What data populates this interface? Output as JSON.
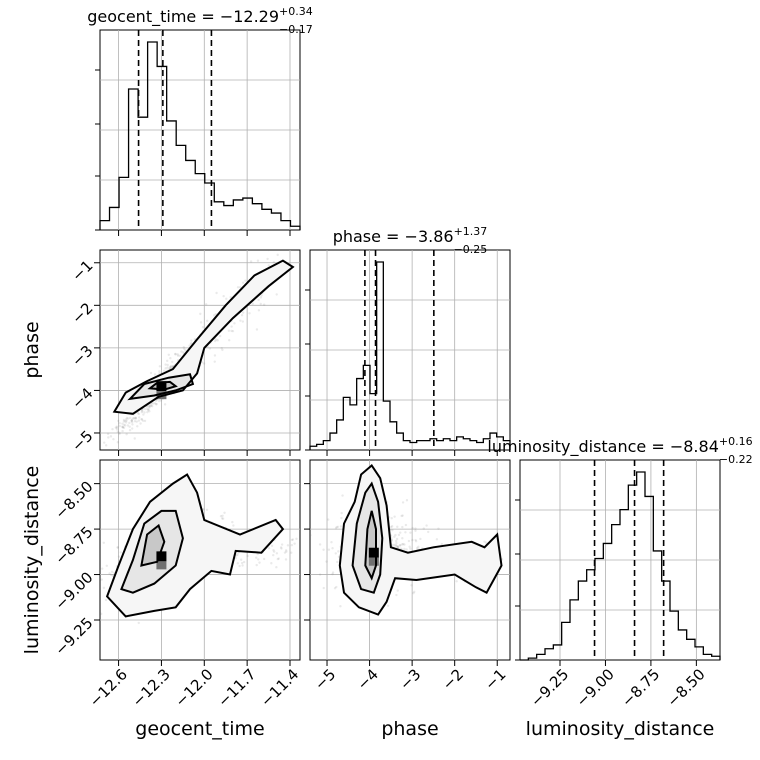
{
  "chart_data": {
    "type": "corner",
    "parameters": [
      {
        "name": "geocent_time",
        "label": "geocent_time",
        "title_main": "geocent_time = −12.29",
        "title_plus": "+0.34",
        "title_minus": "−0.17",
        "range": [
          -12.73,
          -11.33
        ],
        "ticks": [
          -12.6,
          -12.3,
          -12.0,
          -11.7,
          -11.4
        ],
        "tick_labels": [
          "−12.6",
          "−12.3",
          "−12.0",
          "−11.7",
          "−11.4"
        ],
        "quantiles": [
          -12.46,
          -12.29,
          -11.95
        ],
        "hist_values": [
          0.05,
          0.12,
          0.28,
          0.75,
          0.6,
          1.0,
          0.87,
          0.58,
          0.45,
          0.37,
          0.3,
          0.25,
          0.15,
          0.13,
          0.16,
          0.17,
          0.14,
          0.11,
          0.09,
          0.05,
          0.02
        ]
      },
      {
        "name": "phase",
        "label": "phase",
        "title_main": "phase = −3.86",
        "title_plus": "+1.37",
        "title_minus": "−0.25",
        "range": [
          -5.4,
          -0.7
        ],
        "ticks": [
          -5,
          -4,
          -3,
          -2,
          -1
        ],
        "tick_labels": [
          "−5",
          "−4",
          "−3",
          "−2",
          "−1"
        ],
        "quantiles": [
          -4.11,
          -3.86,
          -2.49
        ],
        "hist_values": [
          0.02,
          0.03,
          0.05,
          0.09,
          0.16,
          0.28,
          0.24,
          0.38,
          0.45,
          0.3,
          1.0,
          0.26,
          0.15,
          0.09,
          0.05,
          0.04,
          0.05,
          0.05,
          0.06,
          0.05,
          0.06,
          0.05,
          0.07,
          0.06,
          0.05,
          0.04,
          0.06,
          0.09,
          0.07,
          0.05
        ]
      },
      {
        "name": "luminosity_distance",
        "label": "luminosity_distance",
        "title_main": "luminosity_distance = −8.84",
        "title_plus": "+0.16",
        "title_minus": "−0.22",
        "range": [
          -9.47,
          -8.37
        ],
        "ticks": [
          -9.25,
          -9.0,
          -8.75,
          -8.5
        ],
        "tick_labels": [
          "−9.25",
          "−9.00",
          "−8.75",
          "−8.50"
        ],
        "quantiles": [
          -9.06,
          -8.84,
          -8.68
        ],
        "hist_values": [
          0.0,
          0.01,
          0.03,
          0.06,
          0.08,
          0.2,
          0.32,
          0.42,
          0.48,
          0.54,
          0.62,
          0.72,
          0.8,
          0.93,
          1.0,
          0.87,
          0.58,
          0.42,
          0.26,
          0.16,
          0.11,
          0.07,
          0.03,
          0.02
        ]
      }
    ],
    "pairs": [
      {
        "x": "geocent_time",
        "y": "phase",
        "samples": {
          "center": [
            -12.3,
            -3.9
          ],
          "spread": [
            0.3,
            1.05
          ],
          "correlation": 0.95,
          "tail_to": [
            -11.45,
            -0.95
          ]
        },
        "contours": [
          [
            [
              -12.63,
              -4.5
            ],
            [
              -12.55,
              -4.05
            ],
            [
              -12.4,
              -3.78
            ],
            [
              -12.22,
              -3.5
            ],
            [
              -12.05,
              -2.8
            ],
            [
              -11.85,
              -2.0
            ],
            [
              -11.65,
              -1.3
            ],
            [
              -11.45,
              -0.95
            ],
            [
              -11.38,
              -1.1
            ],
            [
              -11.55,
              -1.55
            ],
            [
              -11.8,
              -2.3
            ],
            [
              -12.0,
              -3.0
            ],
            [
              -12.05,
              -3.6
            ],
            [
              -12.15,
              -4.0
            ],
            [
              -12.32,
              -4.15
            ],
            [
              -12.5,
              -4.55
            ]
          ],
          [
            [
              -12.52,
              -4.2
            ],
            [
              -12.42,
              -3.85
            ],
            [
              -12.25,
              -3.7
            ],
            [
              -12.1,
              -3.62
            ],
            [
              -12.08,
              -3.85
            ],
            [
              -12.2,
              -4.0
            ],
            [
              -12.35,
              -4.12
            ]
          ],
          [
            [
              -12.38,
              -3.95
            ],
            [
              -12.33,
              -3.82
            ],
            [
              -12.24,
              -3.8
            ],
            [
              -12.2,
              -3.9
            ],
            [
              -12.28,
              -3.98
            ]
          ]
        ]
      },
      {
        "x": "geocent_time",
        "y": "luminosity_distance",
        "samples": {
          "center": [
            -12.3,
            -8.9
          ],
          "spread": [
            0.35,
            0.19
          ],
          "correlation": 0.6,
          "tail_to": [
            -11.4,
            -8.85
          ]
        },
        "contours": [
          [
            [
              -12.68,
              -9.12
            ],
            [
              -12.6,
              -8.95
            ],
            [
              -12.5,
              -8.75
            ],
            [
              -12.38,
              -8.6
            ],
            [
              -12.22,
              -8.5
            ],
            [
              -12.12,
              -8.45
            ],
            [
              -12.05,
              -8.55
            ],
            [
              -12.0,
              -8.7
            ],
            [
              -11.75,
              -8.78
            ],
            [
              -11.5,
              -8.7
            ],
            [
              -11.45,
              -8.75
            ],
            [
              -11.6,
              -8.88
            ],
            [
              -11.78,
              -8.87
            ],
            [
              -11.82,
              -9.0
            ],
            [
              -11.95,
              -8.98
            ],
            [
              -12.1,
              -9.08
            ],
            [
              -12.2,
              -9.18
            ],
            [
              -12.35,
              -9.2
            ],
            [
              -12.55,
              -9.23
            ]
          ],
          [
            [
              -12.58,
              -9.08
            ],
            [
              -12.5,
              -8.92
            ],
            [
              -12.42,
              -8.72
            ],
            [
              -12.3,
              -8.65
            ],
            [
              -12.2,
              -8.65
            ],
            [
              -12.15,
              -8.8
            ],
            [
              -12.2,
              -8.95
            ],
            [
              -12.35,
              -9.05
            ],
            [
              -12.5,
              -9.1
            ]
          ],
          [
            [
              -12.44,
              -8.95
            ],
            [
              -12.4,
              -8.78
            ],
            [
              -12.32,
              -8.73
            ],
            [
              -12.28,
              -8.82
            ],
            [
              -12.33,
              -8.93
            ]
          ]
        ]
      },
      {
        "x": "phase",
        "y": "luminosity_distance",
        "samples": {
          "center": [
            -3.9,
            -8.88
          ],
          "spread": [
            0.9,
            0.2
          ],
          "correlation": 0.0,
          "tail_to": [
            -1.0,
            -8.95
          ]
        },
        "contours": [
          [
            [
              -4.7,
              -8.95
            ],
            [
              -4.6,
              -8.72
            ],
            [
              -4.35,
              -8.6
            ],
            [
              -4.2,
              -8.45
            ],
            [
              -3.95,
              -8.4
            ],
            [
              -3.75,
              -8.47
            ],
            [
              -3.6,
              -8.62
            ],
            [
              -3.5,
              -8.85
            ],
            [
              -3.1,
              -8.88
            ],
            [
              -2.5,
              -8.85
            ],
            [
              -1.6,
              -8.82
            ],
            [
              -1.3,
              -8.85
            ],
            [
              -1.0,
              -8.78
            ],
            [
              -0.9,
              -8.95
            ],
            [
              -1.25,
              -9.1
            ],
            [
              -1.5,
              -9.07
            ],
            [
              -2.0,
              -9.0
            ],
            [
              -2.9,
              -9.03
            ],
            [
              -3.4,
              -9.02
            ],
            [
              -3.6,
              -9.15
            ],
            [
              -3.8,
              -9.22
            ],
            [
              -4.25,
              -9.18
            ],
            [
              -4.6,
              -9.1
            ]
          ],
          [
            [
              -4.4,
              -8.95
            ],
            [
              -4.3,
              -8.72
            ],
            [
              -4.1,
              -8.55
            ],
            [
              -3.95,
              -8.5
            ],
            [
              -3.8,
              -8.6
            ],
            [
              -3.7,
              -8.8
            ],
            [
              -3.75,
              -9.0
            ],
            [
              -3.9,
              -9.1
            ],
            [
              -4.2,
              -9.08
            ]
          ],
          [
            [
              -4.1,
              -8.95
            ],
            [
              -4.05,
              -8.75
            ],
            [
              -3.95,
              -8.65
            ],
            [
              -3.85,
              -8.75
            ],
            [
              -3.85,
              -8.95
            ],
            [
              -3.95,
              -9.02
            ]
          ]
        ]
      }
    ]
  }
}
